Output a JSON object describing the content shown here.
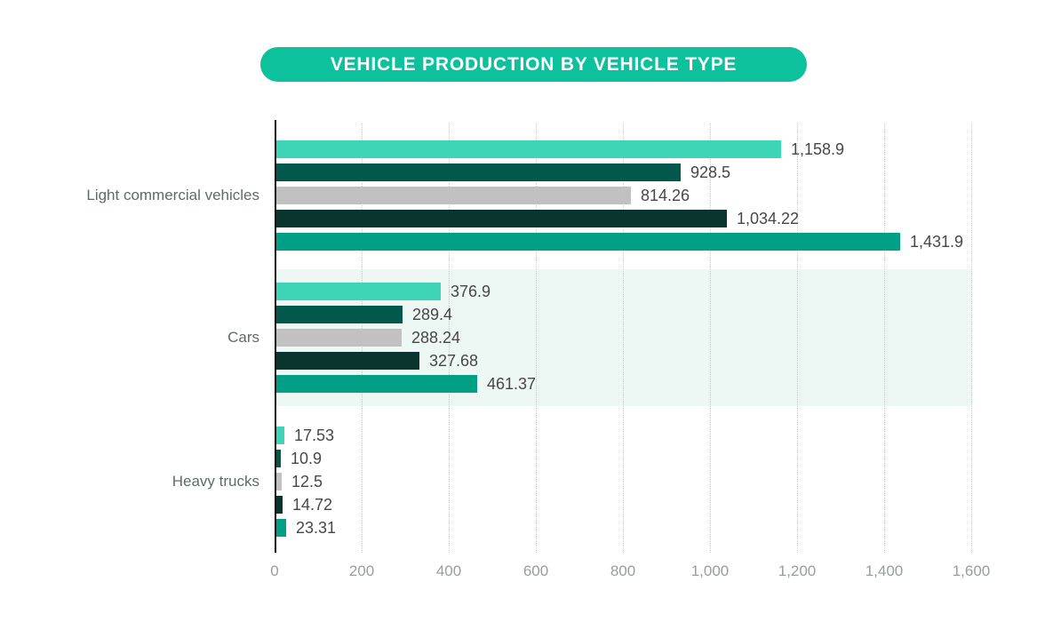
{
  "title": "VEHICLE PRODUCTION BY VEHICLE TYPE",
  "colors": {
    "title_pill_bg": "#0cc19b",
    "title_text": "#ffffff",
    "series": [
      "#3dd5b5",
      "#02594b",
      "#c1c1c1",
      "#0a352f",
      "#01a086"
    ],
    "highlight_band": "#edf7f4",
    "axis_line": "#111111",
    "gridline": "#c9cfcf",
    "value_label": "#474747",
    "category_label": "#616a6a",
    "tick_label": "#979e9e"
  },
  "chart_data": {
    "type": "bar",
    "orientation": "horizontal",
    "title": "VEHICLE PRODUCTION BY VEHICLE TYPE",
    "categories": [
      "Light commercial vehicles",
      "Cars",
      "Heavy trucks"
    ],
    "groups": [
      {
        "label": "Light commercial vehicles",
        "highlight": false,
        "values": [
          1158.9,
          928.5,
          814.26,
          1034.22,
          1431.9
        ],
        "value_labels": [
          "1,158.9",
          "928.5",
          "814.26",
          "1,034.22",
          "1,431.9"
        ]
      },
      {
        "label": "Cars",
        "highlight": true,
        "values": [
          376.9,
          289.4,
          288.24,
          327.68,
          461.37
        ],
        "value_labels": [
          "376.9",
          "289.4",
          "288.24",
          "327.68",
          "461.37"
        ]
      },
      {
        "label": "Heavy trucks",
        "highlight": false,
        "values": [
          17.53,
          10.9,
          12.5,
          14.72,
          23.31
        ],
        "value_labels": [
          "17.53",
          "10.9",
          "12.5",
          "14.72",
          "23.31"
        ]
      }
    ],
    "series_colors": [
      "#3dd5b5",
      "#02594b",
      "#c1c1c1",
      "#0a352f",
      "#01a086"
    ],
    "xlim": [
      0,
      1600
    ],
    "xticks": [
      0,
      200,
      400,
      600,
      800,
      1000,
      1200,
      1400,
      1600
    ],
    "xtick_labels": [
      "0",
      "200",
      "400",
      "600",
      "800",
      "1,000",
      "1,200",
      "1,400",
      "1,600"
    ],
    "grid": "dotted-vertical",
    "legend": "none"
  }
}
